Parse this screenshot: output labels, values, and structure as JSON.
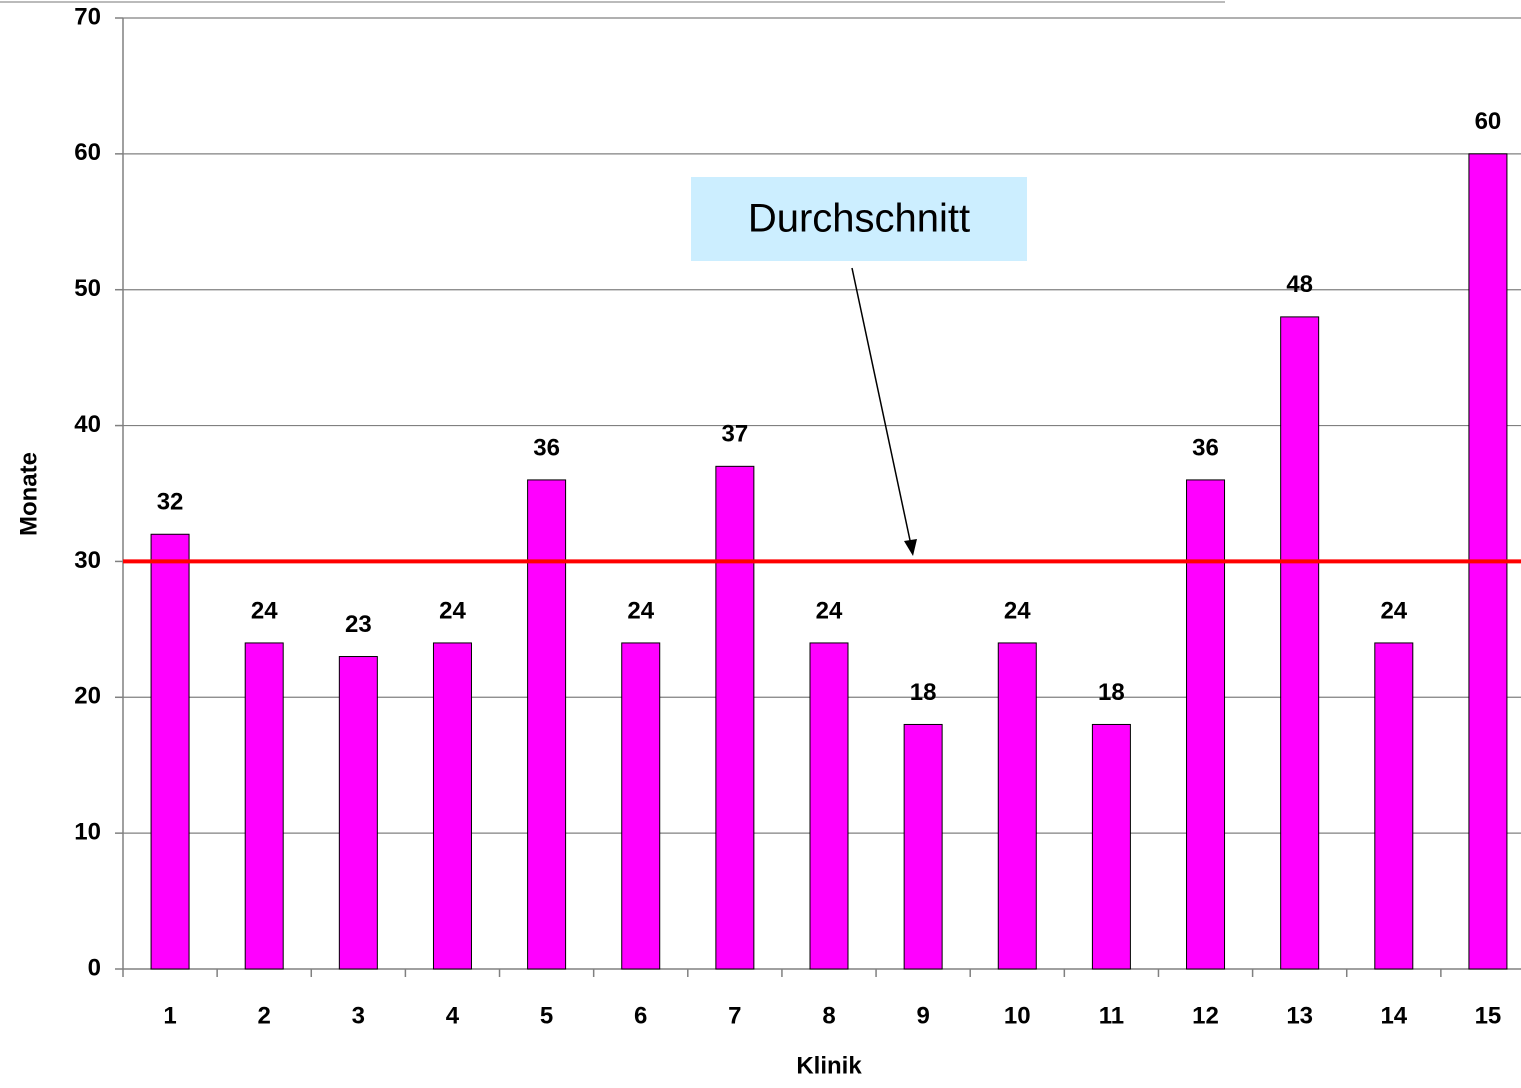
{
  "chart_data": {
    "type": "bar",
    "categories": [
      "1",
      "2",
      "3",
      "4",
      "5",
      "6",
      "7",
      "8",
      "9",
      "10",
      "11",
      "12",
      "13",
      "14",
      "15"
    ],
    "values": [
      32,
      24,
      23,
      24,
      36,
      24,
      37,
      24,
      18,
      24,
      18,
      36,
      48,
      24,
      60
    ],
    "color": "#ff00ff",
    "ylim": [
      0,
      70
    ],
    "yticks": [
      0,
      10,
      20,
      30,
      40,
      50,
      60,
      70
    ],
    "grid": true,
    "xlabel": "Klinik",
    "ylabel": "Monate",
    "reference_line": {
      "value": 30,
      "color": "#ff0000"
    },
    "annotation": "Durchschnitt"
  }
}
